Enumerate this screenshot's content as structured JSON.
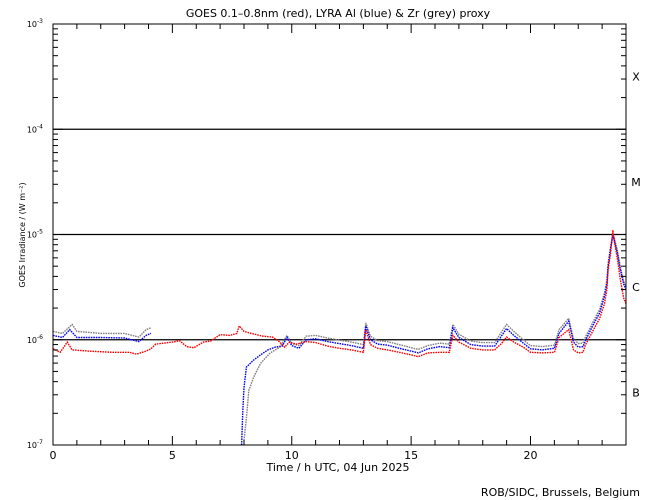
{
  "chart_data": {
    "type": "line",
    "title": "GOES 0.1–0.8nm (red), LYRA Al (blue) & Zr (grey) proxy",
    "xlabel": "Time / h UTC, 04 Jun 2025",
    "ylabel": "GOES Irradiance / (W m⁻²)",
    "xlim": [
      0,
      24
    ],
    "ylim": [
      1e-07,
      0.001
    ],
    "yscale": "log",
    "x_ticks": [
      "0",
      "5",
      "10",
      "15",
      "20"
    ],
    "x_tick_values": [
      0,
      5,
      10,
      15,
      20
    ],
    "y_ticks": [
      {
        "value": 0.001,
        "base": "10",
        "exp": "-3"
      },
      {
        "value": 0.0001,
        "base": "10",
        "exp": "-4"
      },
      {
        "value": 1e-05,
        "base": "10",
        "exp": "-5"
      },
      {
        "value": 1e-06,
        "base": "10",
        "exp": "-6"
      },
      {
        "value": 1e-07,
        "base": "10",
        "exp": "-7"
      }
    ],
    "reference_lines": [
      0.0001,
      1e-05,
      1e-06
    ],
    "flare_classes": [
      {
        "label": "X",
        "value": 0.000316
      },
      {
        "label": "M",
        "value": 3.16e-05
      },
      {
        "label": "C",
        "value": 3.16e-06
      },
      {
        "label": "B",
        "value": 3.16e-07
      }
    ],
    "series": [
      {
        "name": "Zr proxy (grey)",
        "color": "#808080",
        "segments": [
          [
            [
              0,
              1.2e-06
            ],
            [
              0.4,
              1.15e-06
            ],
            [
              0.8,
              1.4e-06
            ],
            [
              1.0,
              1.2e-06
            ],
            [
              2,
              1.15e-06
            ],
            [
              3,
              1.15e-06
            ],
            [
              3.6,
              1.06e-06
            ],
            [
              3.9,
              1.25e-06
            ],
            [
              4.1,
              1.3e-06
            ]
          ],
          [
            [
              8.0,
              1.1e-07
            ],
            [
              8.1,
              1.8e-07
            ],
            [
              8.2,
              3.3e-07
            ],
            [
              8.4,
              4.4e-07
            ],
            [
              8.7,
              6e-07
            ],
            [
              9.1,
              7.5e-07
            ],
            [
              9.5,
              8.5e-07
            ],
            [
              9.8,
              1.1e-06
            ],
            [
              10,
              9.2e-07
            ],
            [
              10.3,
              8.8e-07
            ],
            [
              10.6,
              1.08e-06
            ],
            [
              11,
              1.1e-06
            ],
            [
              11.5,
              1.04e-06
            ],
            [
              12,
              9.9e-07
            ],
            [
              12.5,
              9.5e-07
            ],
            [
              13,
              9e-07
            ],
            [
              13.1,
              1.45e-06
            ],
            [
              13.3,
              1.08e-06
            ],
            [
              13.6,
              9.8e-07
            ],
            [
              14,
              9.6e-07
            ],
            [
              14.5,
              9e-07
            ],
            [
              15,
              8.4e-07
            ],
            [
              15.3,
              8.1e-07
            ],
            [
              15.7,
              8.8e-07
            ],
            [
              16.2,
              9.3e-07
            ],
            [
              16.6,
              9.1e-07
            ],
            [
              16.75,
              1.4e-06
            ],
            [
              17,
              1.13e-06
            ],
            [
              17.5,
              9.7e-07
            ],
            [
              18,
              9.4e-07
            ],
            [
              18.5,
              9.4e-07
            ],
            [
              18.8,
              1.2e-06
            ],
            [
              19,
              1.4e-06
            ],
            [
              19.3,
              1.2e-06
            ],
            [
              19.7,
              1e-06
            ],
            [
              20,
              8.8e-07
            ],
            [
              20.5,
              8.6e-07
            ],
            [
              21,
              8.9e-07
            ],
            [
              21.2,
              1.25e-06
            ],
            [
              21.6,
              1.6e-06
            ],
            [
              21.8,
              1.02e-06
            ],
            [
              22.0,
              9.2e-07
            ],
            [
              22.2,
              9.3e-07
            ],
            [
              22.3,
              1.06e-06
            ],
            [
              22.6,
              1.45e-06
            ],
            [
              22.9,
              1.95e-06
            ],
            [
              23.1,
              2.8e-06
            ],
            [
              23.2,
              3.7e-06
            ],
            [
              23.25,
              5.3e-06
            ],
            [
              23.35,
              7.6e-06
            ],
            [
              23.45,
              1e-05
            ],
            [
              23.5,
              9.4e-06
            ],
            [
              23.65,
              6.9e-06
            ],
            [
              23.75,
              5.1e-06
            ],
            [
              23.9,
              3.6e-06
            ],
            [
              24,
              3.2e-06
            ]
          ]
        ]
      },
      {
        "name": "LYRA Al proxy (blue)",
        "color": "#0000ff",
        "segments": [
          [
            [
              0,
              1.1e-06
            ],
            [
              0.4,
              1.05e-06
            ],
            [
              0.7,
              1.25e-06
            ],
            [
              1.0,
              1.05e-06
            ],
            [
              2,
              1.05e-06
            ],
            [
              3,
              1.04e-06
            ],
            [
              3.6,
              9.6e-07
            ],
            [
              3.9,
              1.1e-06
            ],
            [
              4.1,
              1.15e-06
            ]
          ],
          [
            [
              7.9,
              1e-07
            ],
            [
              7.95,
              2.1e-07
            ],
            [
              8.0,
              3.5e-07
            ],
            [
              8.1,
              5.5e-07
            ],
            [
              8.4,
              6.4e-07
            ],
            [
              8.7,
              7.2e-07
            ],
            [
              9.0,
              8e-07
            ],
            [
              9.3,
              8.5e-07
            ],
            [
              9.6,
              8.7e-07
            ],
            [
              9.8,
              1.05e-06
            ],
            [
              10.0,
              8.8e-07
            ],
            [
              10.3,
              8.3e-07
            ],
            [
              10.6,
              1e-06
            ],
            [
              11,
              1.02e-06
            ],
            [
              11.5,
              9.6e-07
            ],
            [
              12,
              9.2e-07
            ],
            [
              12.5,
              8.8e-07
            ],
            [
              13,
              8.3e-07
            ],
            [
              13.1,
              1.35e-06
            ],
            [
              13.3,
              1e-06
            ],
            [
              13.6,
              9.1e-07
            ],
            [
              14,
              8.9e-07
            ],
            [
              14.5,
              8.3e-07
            ],
            [
              15,
              7.8e-07
            ],
            [
              15.3,
              7.5e-07
            ],
            [
              15.7,
              8.2e-07
            ],
            [
              16.2,
              8.6e-07
            ],
            [
              16.6,
              8.4e-07
            ],
            [
              16.75,
              1.3e-06
            ],
            [
              17,
              1.05e-06
            ],
            [
              17.5,
              9e-07
            ],
            [
              18,
              8.7e-07
            ],
            [
              18.5,
              8.7e-07
            ],
            [
              18.8,
              1.1e-06
            ],
            [
              19,
              1.28e-06
            ],
            [
              19.3,
              1.1e-06
            ],
            [
              19.7,
              9.3e-07
            ],
            [
              20,
              8.2e-07
            ],
            [
              20.5,
              8e-07
            ],
            [
              21,
              8.3e-07
            ],
            [
              21.2,
              1.15e-06
            ],
            [
              21.6,
              1.5e-06
            ],
            [
              21.8,
              9.5e-07
            ],
            [
              22.0,
              8.5e-07
            ],
            [
              22.2,
              8.6e-07
            ],
            [
              22.3,
              9.8e-07
            ],
            [
              22.6,
              1.35e-06
            ],
            [
              22.9,
              1.8e-06
            ],
            [
              23.1,
              2.6e-06
            ],
            [
              23.2,
              3.4e-06
            ],
            [
              23.25,
              5e-06
            ],
            [
              23.35,
              7.2e-06
            ],
            [
              23.45,
              9.8e-06
            ],
            [
              23.5,
              9e-06
            ],
            [
              23.65,
              6.5e-06
            ],
            [
              23.75,
              4.8e-06
            ],
            [
              23.9,
              3.4e-06
            ],
            [
              24,
              3e-06
            ]
          ]
        ]
      },
      {
        "name": "GOES 0.1-0.8nm (red)",
        "color": "#ff0000",
        "segments": [
          [
            [
              0,
              8.2e-07
            ],
            [
              0.3,
              7.6e-07
            ],
            [
              0.6,
              9.5e-07
            ],
            [
              0.8,
              8e-07
            ],
            [
              1.5,
              7.8e-07
            ],
            [
              2.5,
              7.6e-07
            ],
            [
              3.2,
              7.6e-07
            ],
            [
              3.5,
              7.3e-07
            ],
            [
              3.9,
              7.8e-07
            ],
            [
              4.1,
              8.2e-07
            ],
            [
              4.3,
              9.1e-07
            ],
            [
              5,
              9.5e-07
            ],
            [
              5.3,
              9.8e-07
            ],
            [
              5.6,
              8.6e-07
            ],
            [
              5.9,
              8.4e-07
            ],
            [
              6.3,
              9.5e-07
            ],
            [
              6.6,
              9.7e-07
            ],
            [
              7,
              1.12e-06
            ],
            [
              7.4,
              1.1e-06
            ],
            [
              7.7,
              1.15e-06
            ],
            [
              7.8,
              1.35e-06
            ],
            [
              8.0,
              1.2e-06
            ],
            [
              8.3,
              1.15e-06
            ],
            [
              8.8,
              1.08e-06
            ],
            [
              9.2,
              1.06e-06
            ],
            [
              9.5,
              9.5e-07
            ],
            [
              9.7,
              8.5e-07
            ],
            [
              9.9,
              9.5e-07
            ],
            [
              10.2,
              9.1e-07
            ],
            [
              10.6,
              9.6e-07
            ],
            [
              11,
              9.4e-07
            ],
            [
              11.5,
              8.7e-07
            ],
            [
              12,
              8.3e-07
            ],
            [
              12.5,
              8e-07
            ],
            [
              13,
              7.6e-07
            ],
            [
              13.1,
              1.25e-06
            ],
            [
              13.3,
              9e-07
            ],
            [
              13.6,
              8.3e-07
            ],
            [
              14,
              8e-07
            ],
            [
              14.5,
              7.6e-07
            ],
            [
              15,
              7.2e-07
            ],
            [
              15.3,
              6.9e-07
            ],
            [
              15.7,
              7.5e-07
            ],
            [
              16.2,
              7.6e-07
            ],
            [
              16.6,
              7.6e-07
            ],
            [
              16.75,
              1.1e-06
            ],
            [
              17,
              9.5e-07
            ],
            [
              17.5,
              8.3e-07
            ],
            [
              18,
              8e-07
            ],
            [
              18.5,
              8e-07
            ],
            [
              18.8,
              9.3e-07
            ],
            [
              19,
              1.06e-06
            ],
            [
              19.3,
              9.5e-07
            ],
            [
              19.7,
              8.5e-07
            ],
            [
              20,
              7.6e-07
            ],
            [
              20.5,
              7.5e-07
            ],
            [
              21,
              7.6e-07
            ],
            [
              21.2,
              1.05e-06
            ],
            [
              21.6,
              1.25e-06
            ],
            [
              21.8,
              8e-07
            ],
            [
              22.0,
              7.5e-07
            ],
            [
              22.2,
              7.6e-07
            ],
            [
              22.3,
              8.9e-07
            ],
            [
              22.6,
              1.2e-06
            ],
            [
              22.9,
              1.6e-06
            ],
            [
              23.1,
              2.2e-06
            ],
            [
              23.2,
              3e-06
            ],
            [
              23.25,
              4.6e-06
            ],
            [
              23.35,
              6.6e-06
            ],
            [
              23.45,
              1.1e-05
            ],
            [
              23.5,
              8.9e-06
            ],
            [
              23.65,
              5.7e-06
            ],
            [
              23.75,
              3.9e-06
            ],
            [
              23.9,
              2.5e-06
            ],
            [
              24,
              2.2e-06
            ]
          ]
        ]
      }
    ]
  },
  "footer": {
    "credit": "ROB/SIDC, Brussels, Belgium"
  }
}
